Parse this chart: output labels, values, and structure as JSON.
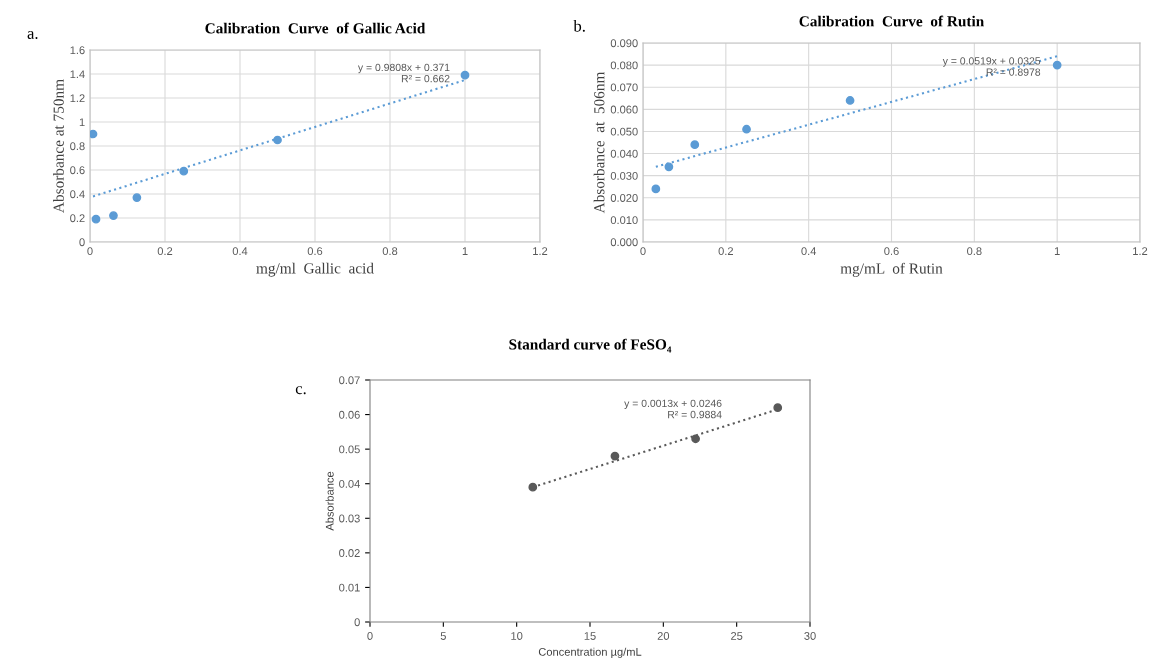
{
  "chart_data": [
    {
      "type": "scatter",
      "title": "Calibration  Curve  of Gallic Acid",
      "xlabel": "mg/ml  Gallic  acid",
      "ylabel": "Absorbance at 750nm",
      "xlim": [
        0,
        1.2
      ],
      "xticks": [
        0,
        0.2,
        0.4,
        0.6,
        0.8,
        1,
        1.2
      ],
      "ylim": [
        0,
        1.6
      ],
      "yticks": [
        0,
        0.2,
        0.4,
        0.6,
        0.8,
        1,
        1.2,
        1.4,
        1.6
      ],
      "grid": true,
      "annotations": [
        "a.",
        "y = 0.9808x + 0.371\nR² = 0.662"
      ],
      "series": [
        {
          "color": "#5b9bd5",
          "marker": "circle",
          "x": [
            0.008,
            0.016,
            0.0625,
            0.125,
            0.25,
            0.5,
            1.0
          ],
          "values": [
            0.9,
            0.19,
            0.22,
            0.37,
            0.59,
            0.85,
            1.39
          ]
        },
        {
          "type": "line",
          "color": "#5b9bd5",
          "line_style": "dotted",
          "x": [
            0.008,
            1.0
          ],
          "values": [
            0.38,
            1.35
          ]
        }
      ]
    },
    {
      "type": "scatter",
      "title": "Calibration  Curve  of Rutin",
      "xlabel": "mg/mL  of Rutin",
      "ylabel": "Absorbance  at  506nm",
      "xlim": [
        0,
        1.2
      ],
      "xticks": [
        0,
        0.2,
        0.4,
        0.6,
        0.8,
        1,
        1.2
      ],
      "ylim": [
        0,
        0.09
      ],
      "yticks": [
        {
          "value": 0,
          "label": "0.000"
        },
        {
          "value": 0.01,
          "label": "0.010"
        },
        {
          "value": 0.02,
          "label": "0.020"
        },
        {
          "value": 0.03,
          "label": "0.030"
        },
        {
          "value": 0.04,
          "label": "0.040"
        },
        {
          "value": 0.05,
          "label": "0.050"
        },
        {
          "value": 0.06,
          "label": "0.060"
        },
        {
          "value": 0.07,
          "label": "0.070"
        },
        {
          "value": 0.08,
          "label": "0.080"
        },
        {
          "value": 0.09,
          "label": "0.090"
        }
      ],
      "grid": true,
      "annotations": [
        "b.",
        "y = 0.0519x + 0.0325\nR² = 0.8978"
      ],
      "series": [
        {
          "color": "#5b9bd5",
          "marker": "circle",
          "x": [
            0.031,
            0.0625,
            0.125,
            0.25,
            0.5,
            1.0
          ],
          "values": [
            0.024,
            0.034,
            0.044,
            0.051,
            0.064,
            0.08
          ]
        },
        {
          "type": "line",
          "color": "#5b9bd5",
          "line_style": "dotted",
          "x": [
            0.031,
            1.0
          ],
          "values": [
            0.034,
            0.084
          ]
        }
      ]
    },
    {
      "type": "scatter",
      "title": "Standard curve of FeSO₄",
      "xlabel": "Concentration µg/mL",
      "ylabel": "Absorbance",
      "xlim": [
        0,
        30
      ],
      "xticks": [
        0,
        5,
        10,
        15,
        20,
        25,
        30
      ],
      "ylim": [
        0,
        0.07
      ],
      "yticks": [
        0,
        0.01,
        0.02,
        0.03,
        0.04,
        0.05,
        0.06,
        0.07
      ],
      "grid": false,
      "annotations": [
        "c.",
        "y = 0.0013x + 0.0246\nR² = 0.9884"
      ],
      "series": [
        {
          "color": "#595959",
          "marker": "circle",
          "x": [
            11.1,
            16.7,
            22.2,
            27.8
          ],
          "values": [
            0.039,
            0.048,
            0.053,
            0.062
          ]
        },
        {
          "type": "line",
          "color": "#595959",
          "line_style": "dotted",
          "x": [
            11.1,
            27.8
          ],
          "values": [
            0.039,
            0.0615
          ]
        }
      ]
    }
  ]
}
